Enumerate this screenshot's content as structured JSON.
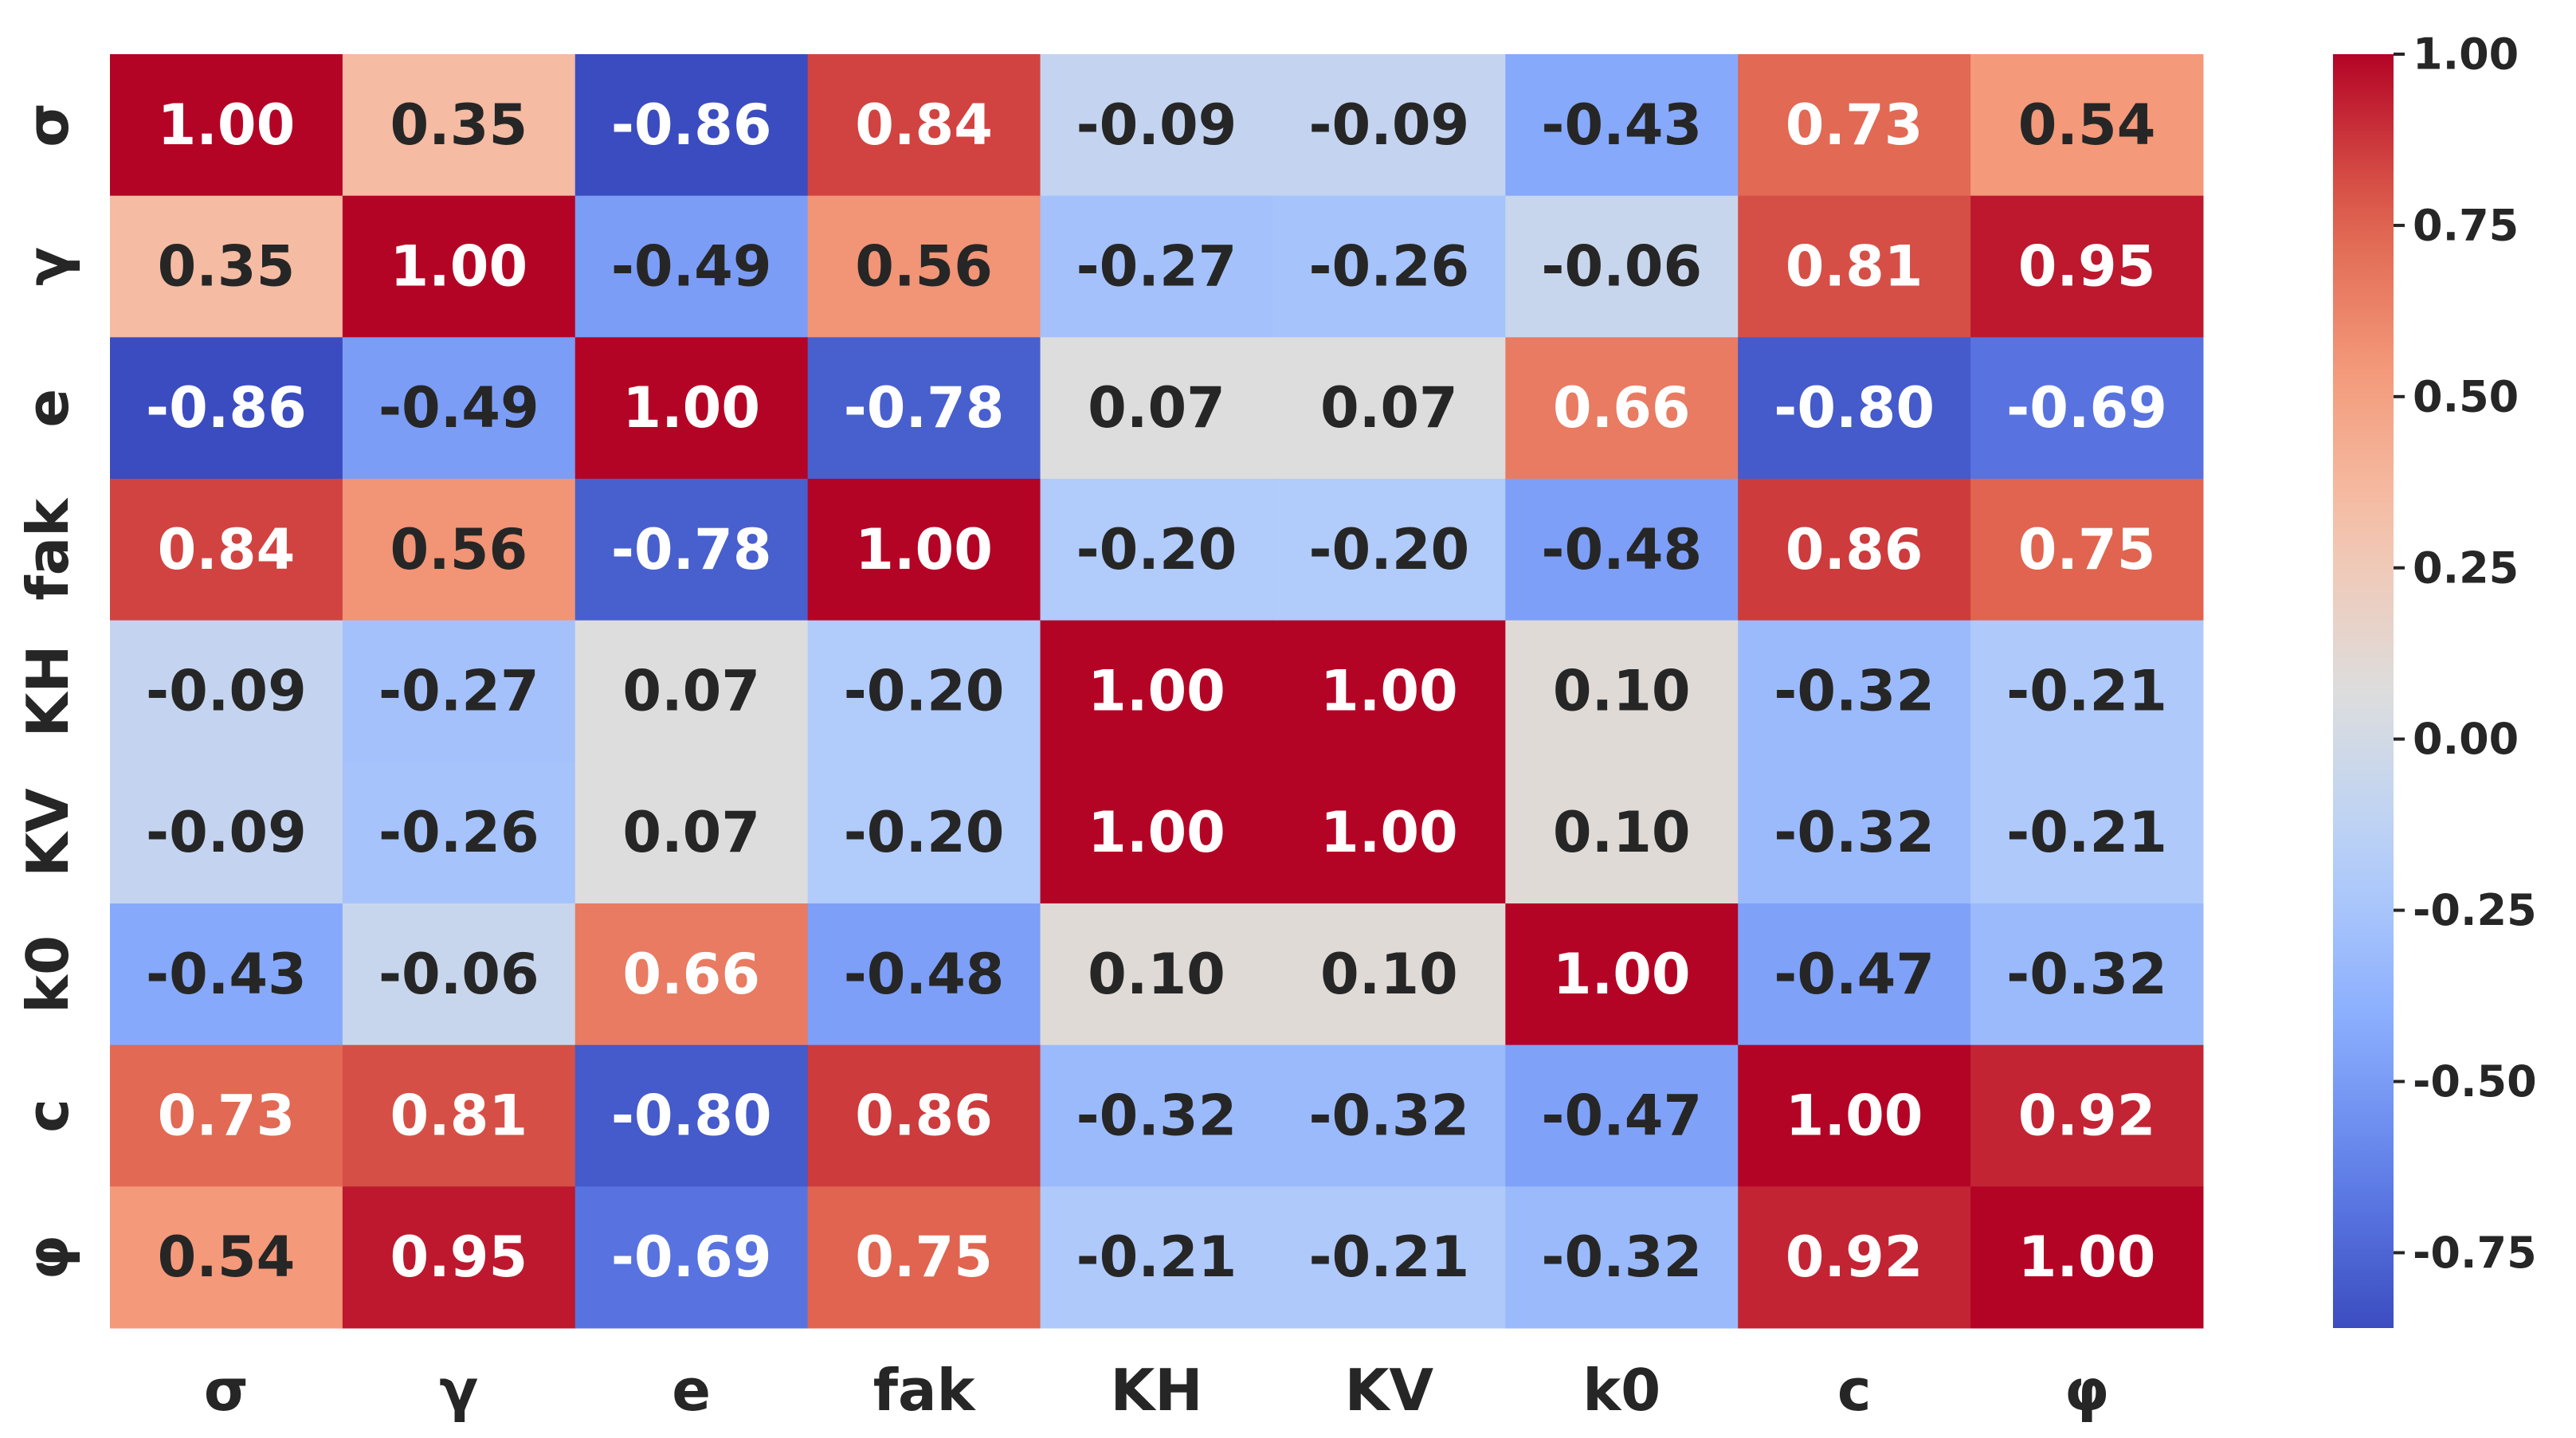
{
  "chart_data": {
    "type": "heatmap",
    "title": "",
    "xlabel": "",
    "ylabel": "",
    "x_categories": [
      "σ",
      "γ",
      "e",
      "fak",
      "KH",
      "KV",
      "k0",
      "c",
      "φ"
    ],
    "y_categories": [
      "σ",
      "γ",
      "e",
      "fak",
      "KH",
      "KV",
      "k0",
      "c",
      "φ"
    ],
    "values": [
      [
        1.0,
        0.35,
        -0.86,
        0.84,
        -0.09,
        -0.09,
        -0.43,
        0.73,
        0.54
      ],
      [
        0.35,
        1.0,
        -0.49,
        0.56,
        -0.27,
        -0.26,
        -0.06,
        0.81,
        0.95
      ],
      [
        -0.86,
        -0.49,
        1.0,
        -0.78,
        0.07,
        0.07,
        0.66,
        -0.8,
        -0.69
      ],
      [
        0.84,
        0.56,
        -0.78,
        1.0,
        -0.2,
        -0.2,
        -0.48,
        0.86,
        0.75
      ],
      [
        -0.09,
        -0.27,
        0.07,
        -0.2,
        1.0,
        1.0,
        0.1,
        -0.32,
        -0.21
      ],
      [
        -0.09,
        -0.26,
        0.07,
        -0.2,
        1.0,
        1.0,
        0.1,
        -0.32,
        -0.21
      ],
      [
        -0.43,
        -0.06,
        0.66,
        -0.48,
        0.1,
        0.1,
        1.0,
        -0.47,
        -0.32
      ],
      [
        0.73,
        0.81,
        -0.8,
        0.86,
        -0.32,
        -0.32,
        -0.47,
        1.0,
        0.92
      ],
      [
        0.54,
        0.95,
        -0.69,
        0.75,
        -0.21,
        -0.21,
        -0.32,
        0.92,
        1.0
      ]
    ],
    "value_format": "0.00",
    "colormap": "coolwarm",
    "vmin": -0.86,
    "vmax": 1.0,
    "annotations": true,
    "colorbar": {
      "ticks": [
        1.0,
        0.75,
        0.5,
        0.25,
        0.0,
        -0.25,
        -0.5,
        -0.75
      ],
      "tick_labels": [
        "1.00",
        "0.75",
        "0.50",
        "0.25",
        "0.00",
        "-0.25",
        "-0.50",
        "-0.75"
      ],
      "placement": "right"
    },
    "grid": false
  }
}
